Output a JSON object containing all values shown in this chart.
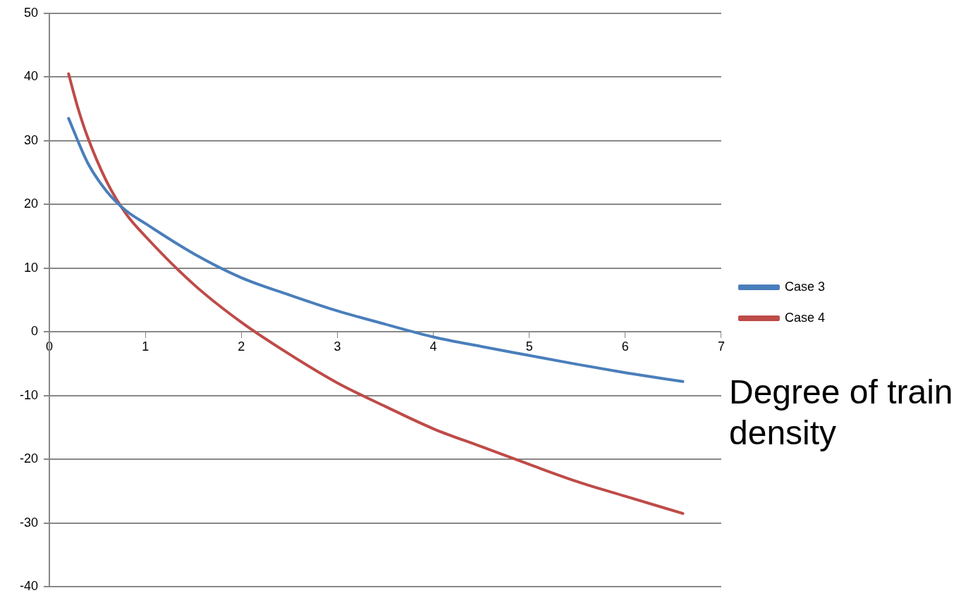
{
  "chart_data": {
    "type": "line",
    "xlabel": "Degree of train density",
    "xlim": [
      0,
      7
    ],
    "xticks": [
      0,
      1,
      2,
      3,
      4,
      5,
      6,
      7
    ],
    "ylim": [
      -40,
      50
    ],
    "yticks": [
      -40,
      -30,
      -20,
      -10,
      0,
      10,
      20,
      30,
      40,
      50
    ],
    "grid": "y",
    "legend": "right",
    "marker": "none",
    "line_style": "solid",
    "series": [
      {
        "name": "Case 3",
        "color": "#4a7ebb",
        "x": [
          0.2,
          0.4,
          0.6,
          0.8,
          1,
          1.5,
          2,
          2.5,
          3,
          3.5,
          4,
          4.5,
          5,
          5.5,
          6,
          6.6
        ],
        "values": [
          33.5,
          26.5,
          22,
          19,
          17,
          12.3,
          8.5,
          5.8,
          3.3,
          1.2,
          -0.8,
          -2.3,
          -3.7,
          -5.1,
          -6.4,
          -7.8
        ]
      },
      {
        "name": "Case 4",
        "color": "#be4b48",
        "x": [
          0.2,
          0.3,
          0.4,
          0.6,
          0.8,
          1,
          1.5,
          2,
          2.5,
          3,
          3.5,
          4,
          4.5,
          5,
          5.5,
          6,
          6.6
        ],
        "values": [
          40.5,
          35,
          30.5,
          23.5,
          18.5,
          15,
          7.5,
          1.5,
          -3.5,
          -8,
          -11.7,
          -15.2,
          -18,
          -20.8,
          -23.5,
          -25.8,
          -28.5
        ]
      }
    ]
  }
}
